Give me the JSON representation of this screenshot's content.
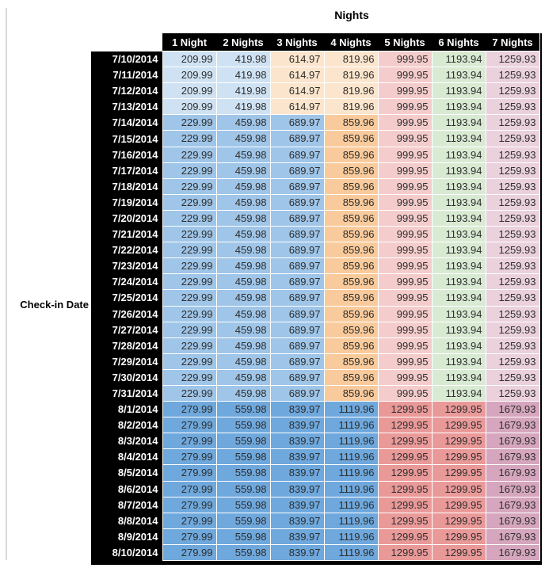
{
  "title": "Nights",
  "row_axis_label": "Check-in Date",
  "palette": {
    "header_bg": "#000000",
    "header_text": "#ffffff",
    "value_text": "#2e2e2e",
    "gridline": "#ffffff",
    "window_border_gray": "#d9d9d9",
    "light_blue_3": "#CFE2F3",
    "light_blue_2": "#9FC5E8",
    "light_blue_1": "#6FA8DC",
    "light_orange_3": "#FCE5CD",
    "light_orange_2": "#F9CB9C",
    "light_red_3": "#F4CCCC",
    "light_red_2": "#EA9999",
    "light_green_3": "#D9EAD3",
    "light_magenta_3": "#EAD1DC",
    "light_magenta_2": "#D5A6BD"
  },
  "table": {
    "columns": [
      "1 Night",
      "2 Nights",
      "3 Nights",
      "4 Nights",
      "5 Nights",
      "6 Nights",
      "7 Nights"
    ],
    "groups": {
      "early_july": {
        "values": [
          "209.99",
          "419.98",
          "614.97",
          "819.96",
          "999.95",
          "1193.94",
          "1259.93"
        ],
        "cell_colors": [
          "light_blue_3",
          "light_blue_3",
          "light_orange_3",
          "light_orange_3",
          "light_red_3",
          "light_green_3",
          "light_magenta_3"
        ]
      },
      "mid_july": {
        "values": [
          "229.99",
          "459.98",
          "689.97",
          "859.96",
          "999.95",
          "1193.94",
          "1259.93"
        ],
        "cell_colors": [
          "light_blue_2",
          "light_blue_2",
          "light_blue_2",
          "light_orange_2",
          "light_red_3",
          "light_green_3",
          "light_magenta_3"
        ]
      },
      "august": {
        "values": [
          "279.99",
          "559.98",
          "839.97",
          "1119.96",
          "1299.95",
          "1299.95",
          "1679.93"
        ],
        "cell_colors": [
          "light_blue_1",
          "light_blue_1",
          "light_blue_1",
          "light_blue_1",
          "light_red_2",
          "light_red_2",
          "light_magenta_2"
        ]
      }
    },
    "rows": [
      {
        "date": "7/10/2014",
        "group": "early_july"
      },
      {
        "date": "7/11/2014",
        "group": "early_july"
      },
      {
        "date": "7/12/2014",
        "group": "early_july"
      },
      {
        "date": "7/13/2014",
        "group": "early_july"
      },
      {
        "date": "7/14/2014",
        "group": "mid_july"
      },
      {
        "date": "7/15/2014",
        "group": "mid_july"
      },
      {
        "date": "7/16/2014",
        "group": "mid_july"
      },
      {
        "date": "7/17/2014",
        "group": "mid_july"
      },
      {
        "date": "7/18/2014",
        "group": "mid_july"
      },
      {
        "date": "7/19/2014",
        "group": "mid_july"
      },
      {
        "date": "7/20/2014",
        "group": "mid_july"
      },
      {
        "date": "7/21/2014",
        "group": "mid_july"
      },
      {
        "date": "7/22/2014",
        "group": "mid_july"
      },
      {
        "date": "7/23/2014",
        "group": "mid_july"
      },
      {
        "date": "7/24/2014",
        "group": "mid_july"
      },
      {
        "date": "7/25/2014",
        "group": "mid_july"
      },
      {
        "date": "7/26/2014",
        "group": "mid_july"
      },
      {
        "date": "7/27/2014",
        "group": "mid_july"
      },
      {
        "date": "7/28/2014",
        "group": "mid_july"
      },
      {
        "date": "7/29/2014",
        "group": "mid_july"
      },
      {
        "date": "7/30/2014",
        "group": "mid_july"
      },
      {
        "date": "7/31/2014",
        "group": "mid_july"
      },
      {
        "date": "8/1/2014",
        "group": "august"
      },
      {
        "date": "8/2/2014",
        "group": "august"
      },
      {
        "date": "8/3/2014",
        "group": "august"
      },
      {
        "date": "8/4/2014",
        "group": "august"
      },
      {
        "date": "8/5/2014",
        "group": "august"
      },
      {
        "date": "8/6/2014",
        "group": "august"
      },
      {
        "date": "8/7/2014",
        "group": "august"
      },
      {
        "date": "8/8/2014",
        "group": "august"
      },
      {
        "date": "8/9/2014",
        "group": "august"
      },
      {
        "date": "8/10/2014",
        "group": "august"
      }
    ]
  }
}
